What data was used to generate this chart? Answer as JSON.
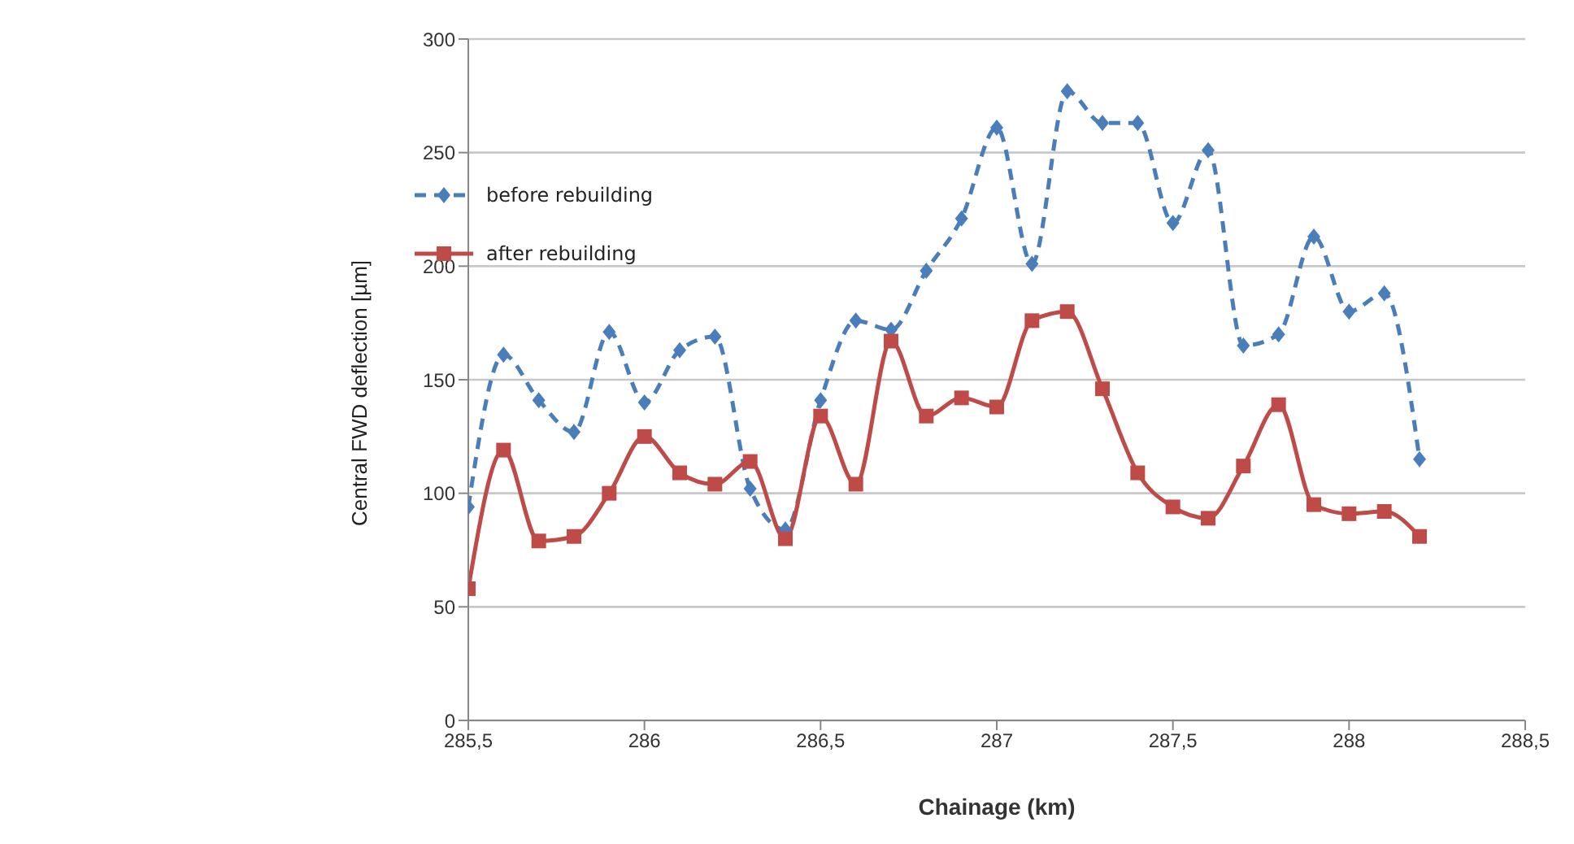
{
  "chart_data": {
    "type": "line",
    "xlabel": "Chainage (km)",
    "ylabel": "Central FWD deflection [µm]",
    "x": [
      285.5,
      285.6,
      285.7,
      285.8,
      285.9,
      286,
      286.1,
      286.2,
      286.3,
      286.4,
      286.5,
      286.6,
      286.7,
      286.8,
      286.9,
      287,
      287.1,
      287.2,
      287.3,
      287.4,
      287.5,
      287.6,
      287.7,
      287.8,
      287.9,
      288,
      288.1,
      288.2
    ],
    "series": [
      {
        "name": "before rebuilding",
        "color": "#4a7ebb",
        "marker": "diamond",
        "line_style": "dashed",
        "values": [
          94,
          161,
          141,
          127,
          171,
          140,
          163,
          169,
          102,
          84,
          141,
          176,
          172,
          198,
          221,
          261,
          201,
          277,
          263,
          263,
          219,
          251,
          165,
          170,
          213,
          180,
          188,
          115
        ]
      },
      {
        "name": "after rebuilding",
        "color": "#be4b48",
        "marker": "square",
        "line_style": "solid",
        "values": [
          58,
          119,
          79,
          81,
          100,
          125,
          109,
          104,
          114,
          80,
          134,
          104,
          167,
          134,
          142,
          138,
          176,
          180,
          146,
          109,
          94,
          89,
          112,
          139,
          95,
          91,
          92,
          81
        ]
      }
    ],
    "xlim": [
      285.5,
      288.5
    ],
    "xticks": [
      {
        "value": 285.5,
        "label": "285,5"
      },
      286,
      {
        "value": 286.5,
        "label": "286,5"
      },
      287,
      {
        "value": 287.5,
        "label": "287,5"
      },
      288,
      {
        "value": 288.5,
        "label": "288,5"
      }
    ],
    "ylim": [
      0,
      300
    ],
    "yticks": [
      0,
      50,
      100,
      150,
      200,
      250,
      300
    ],
    "grid": "y",
    "legend": "top left"
  }
}
